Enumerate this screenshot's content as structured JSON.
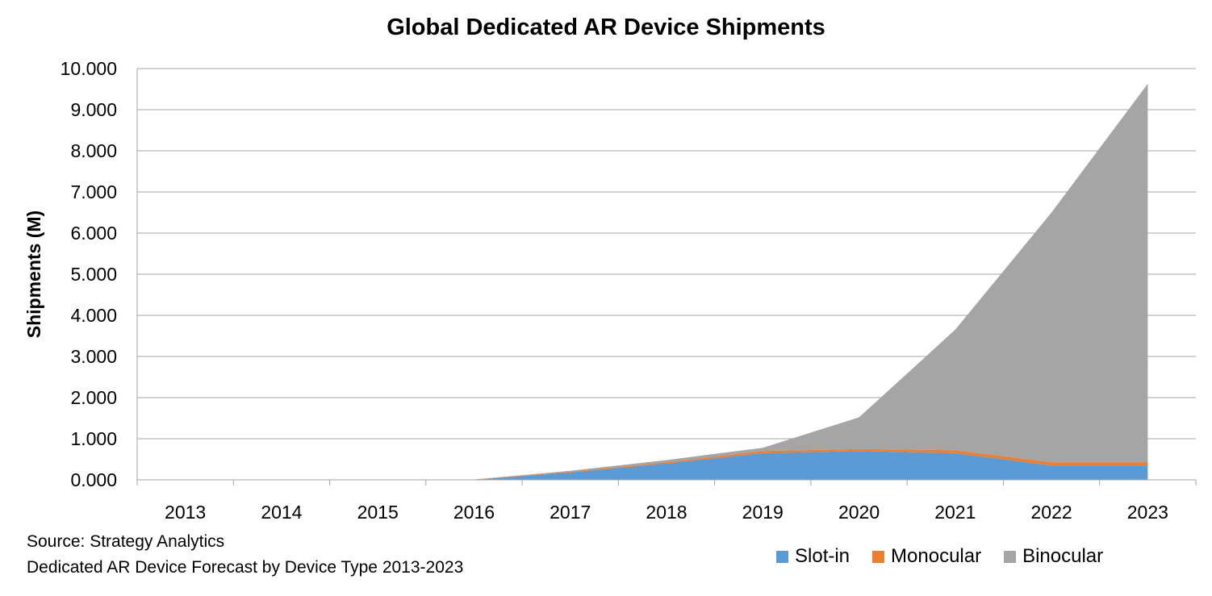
{
  "chart_data": {
    "type": "area",
    "stacked": true,
    "title": "Global Dedicated AR Device Shipments",
    "xlabel": "",
    "ylabel": "Shipments (M)",
    "categories": [
      "2013",
      "2014",
      "2015",
      "2016",
      "2017",
      "2018",
      "2019",
      "2020",
      "2021",
      "2022",
      "2023"
    ],
    "ylim": [
      0,
      10
    ],
    "yticks": [
      0,
      1,
      2,
      3,
      4,
      5,
      6,
      7,
      8,
      9,
      10
    ],
    "ytick_labels": [
      "0.000",
      "1.000",
      "2.000",
      "3.000",
      "4.000",
      "5.000",
      "6.000",
      "7.000",
      "8.000",
      "9.000",
      "10.000"
    ],
    "grid": true,
    "legend_position": "bottom-right",
    "series": [
      {
        "name": "Slot-in",
        "color": "#5b9bd5",
        "values": [
          0,
          0,
          0,
          0,
          0.18,
          0.4,
          0.65,
          0.7,
          0.65,
          0.35,
          0.35
        ]
      },
      {
        "name": "Monocular",
        "color": "#ed7d31",
        "values": [
          0.01,
          0.01,
          0.01,
          0.01,
          0.02,
          0.03,
          0.05,
          0.05,
          0.07,
          0.08,
          0.08
        ]
      },
      {
        "name": "Binocular",
        "color": "#a5a5a5",
        "values": [
          0,
          0,
          0,
          0,
          0.02,
          0.05,
          0.08,
          0.77,
          2.93,
          6.07,
          9.2
        ]
      }
    ]
  },
  "footer": {
    "source": "Source: Strategy Analytics",
    "description": "Dedicated AR Device Forecast by Device Type 2013-2023"
  }
}
